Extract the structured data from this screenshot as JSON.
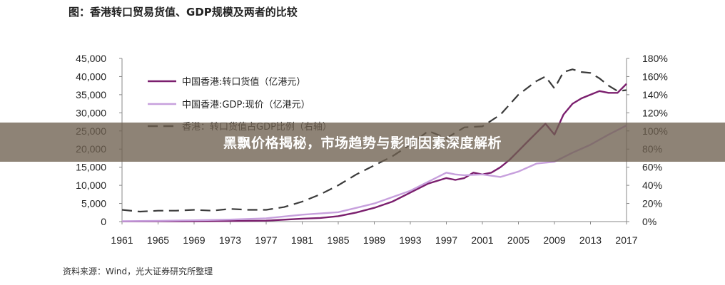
{
  "figure": {
    "title": "图：香港转口贸易货值、GDP规模及两者的比较",
    "source": "资料来源：Wind，光大证券研究所整理"
  },
  "banner": {
    "text": "黑飘价格揭秘，市场趋势与影响因素深度解析"
  },
  "colors": {
    "reexport": "#7b1f6e",
    "gdp": "#c7a0dd",
    "ratio": "#3a3a3a",
    "banner_bg": "#6e6050"
  },
  "chart_data": {
    "type": "line",
    "title": "",
    "x_ticks": [
      "1961",
      "1965",
      "1969",
      "1973",
      "1977",
      "1981",
      "1985",
      "1989",
      "1993",
      "1997",
      "2001",
      "2005",
      "2009",
      "2013",
      "2017"
    ],
    "xlim": [
      1961,
      2017
    ],
    "y_left": {
      "ylim": [
        0,
        45000
      ],
      "ticks": [
        "0",
        "5,000",
        "10,000",
        "15,000",
        "20,000",
        "25,000",
        "30,000",
        "35,000",
        "40,000",
        "45,000"
      ]
    },
    "y_right": {
      "ylim": [
        0,
        180
      ],
      "ticks": [
        "0%",
        "20%",
        "40%",
        "60%",
        "80%",
        "100%",
        "120%",
        "140%",
        "160%",
        "180%"
      ]
    },
    "grid": false,
    "legend_position": "top-left",
    "series": [
      {
        "name": "中国香港:转口货值（亿港元）",
        "axis": "left",
        "style": "solid",
        "x": [
          1961,
          1965,
          1969,
          1973,
          1977,
          1981,
          1983,
          1985,
          1987,
          1989,
          1991,
          1993,
          1995,
          1997,
          1998,
          1999,
          2000,
          2001,
          2002,
          2003,
          2004,
          2005,
          2006,
          2007,
          2008,
          2009,
          2010,
          2011,
          2012,
          2013,
          2014,
          2015,
          2016,
          2017
        ],
        "y": [
          30,
          50,
          80,
          150,
          250,
          800,
          1000,
          1500,
          2500,
          3800,
          5500,
          8000,
          10500,
          12000,
          11500,
          12000,
          13500,
          13000,
          13500,
          15000,
          17000,
          19500,
          22000,
          24500,
          27000,
          24000,
          29500,
          32500,
          34000,
          35000,
          36000,
          35500,
          35500,
          38000
        ]
      },
      {
        "name": "中国香港:GDP:现价（亿港元）",
        "axis": "left",
        "style": "solid",
        "x": [
          1961,
          1965,
          1969,
          1973,
          1977,
          1981,
          1985,
          1989,
          1993,
          1997,
          1998,
          1999,
          2001,
          2003,
          2005,
          2007,
          2009,
          2011,
          2013,
          2015,
          2017
        ],
        "y": [
          100,
          200,
          350,
          550,
          900,
          1900,
          2600,
          5000,
          8500,
          13500,
          13000,
          12800,
          13000,
          12300,
          13800,
          16000,
          16500,
          19000,
          21200,
          24000,
          26500
        ]
      },
      {
        "name": "香港：转口货值占GDP比例（右轴）",
        "axis": "right",
        "style": "dashed",
        "x": [
          1961,
          1963,
          1965,
          1967,
          1969,
          1971,
          1973,
          1975,
          1977,
          1979,
          1981,
          1983,
          1985,
          1987,
          1989,
          1991,
          1993,
          1995,
          1997,
          1999,
          2001,
          2003,
          2005,
          2007,
          2008,
          2009,
          2010,
          2011,
          2012,
          2013,
          2014,
          2015,
          2016,
          2017
        ],
        "y": [
          13,
          11,
          12,
          12,
          13,
          12,
          14,
          13,
          13,
          16,
          22,
          30,
          40,
          52,
          62,
          72,
          85,
          100,
          92,
          104,
          105,
          118,
          140,
          155,
          160,
          147,
          165,
          168,
          165,
          164,
          158,
          150,
          144,
          145
        ]
      }
    ]
  }
}
